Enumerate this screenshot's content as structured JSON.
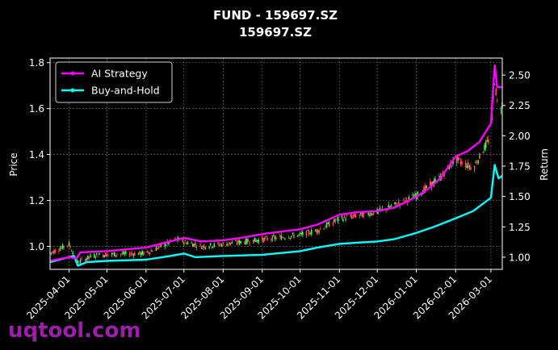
{
  "chart_data": {
    "type": "line",
    "title": "FUND - 159697.SZ",
    "subtitle": "159697.SZ",
    "ylabel_left": "Price",
    "ylabel_right": "Return",
    "x_tick_labels": [
      "2025-04-01",
      "2025-05-01",
      "2025-06-01",
      "2025-07-01",
      "2025-08-01",
      "2025-09-01",
      "2025-10-01",
      "2025-11-01",
      "2025-12-01",
      "2026-01-01",
      "2026-02-01",
      "2026-03-01"
    ],
    "x_range": [
      "2025-03-17",
      "2026-03-10"
    ],
    "y_left_ticks": [
      "1.0",
      "1.2",
      "1.4",
      "1.6",
      "1.8"
    ],
    "y_left_range": [
      0.9,
      1.82
    ],
    "y_right_ticks": [
      "1.00",
      "1.25",
      "1.50",
      "1.75",
      "2.00",
      "2.25",
      "2.50"
    ],
    "y_right_range": [
      0.9,
      2.64
    ],
    "grid": true,
    "legend_position": "top-left",
    "colors": {
      "ai": "#ff00ff",
      "bh": "#00ffff",
      "up": "#55ee55",
      "down": "#ff5555",
      "background": "#000000"
    },
    "series": [
      {
        "name": "AI Strategy",
        "axis": "right",
        "color": "#ff00ff",
        "points": [
          [
            "2025-03-17",
            0.97
          ],
          [
            "2025-04-01",
            1.0
          ],
          [
            "2025-04-07",
            0.99
          ],
          [
            "2025-04-10",
            1.04
          ],
          [
            "2025-05-01",
            1.05
          ],
          [
            "2025-06-01",
            1.08
          ],
          [
            "2025-07-01",
            1.16
          ],
          [
            "2025-07-15",
            1.13
          ],
          [
            "2025-08-01",
            1.14
          ],
          [
            "2025-08-15",
            1.16
          ],
          [
            "2025-09-01",
            1.19
          ],
          [
            "2025-09-15",
            1.21
          ],
          [
            "2025-10-01",
            1.23
          ],
          [
            "2025-10-15",
            1.27
          ],
          [
            "2025-11-01",
            1.35
          ],
          [
            "2025-11-15",
            1.37
          ],
          [
            "2025-12-01",
            1.38
          ],
          [
            "2025-12-15",
            1.41
          ],
          [
            "2026-01-01",
            1.5
          ],
          [
            "2026-01-10",
            1.56
          ],
          [
            "2026-01-20",
            1.65
          ],
          [
            "2026-02-01",
            1.83
          ],
          [
            "2026-02-10",
            1.87
          ],
          [
            "2026-02-20",
            1.95
          ],
          [
            "2026-03-01",
            2.1
          ],
          [
            "2026-03-04",
            2.58
          ],
          [
            "2026-03-06",
            2.4
          ],
          [
            "2026-03-10",
            2.4
          ]
        ]
      },
      {
        "name": "Buy-and-Hold",
        "axis": "right",
        "color": "#00ffff",
        "points": [
          [
            "2025-03-17",
            0.96
          ],
          [
            "2025-04-01",
            1.0
          ],
          [
            "2025-04-05",
            1.01
          ],
          [
            "2025-04-08",
            0.93
          ],
          [
            "2025-04-15",
            0.96
          ],
          [
            "2025-05-01",
            0.97
          ],
          [
            "2025-06-01",
            0.98
          ],
          [
            "2025-06-20",
            1.01
          ],
          [
            "2025-07-01",
            1.03
          ],
          [
            "2025-07-10",
            1.0
          ],
          [
            "2025-08-01",
            1.01
          ],
          [
            "2025-09-01",
            1.02
          ],
          [
            "2025-10-01",
            1.05
          ],
          [
            "2025-10-15",
            1.08
          ],
          [
            "2025-11-01",
            1.11
          ],
          [
            "2025-11-15",
            1.12
          ],
          [
            "2025-12-01",
            1.13
          ],
          [
            "2025-12-15",
            1.15
          ],
          [
            "2026-01-01",
            1.2
          ],
          [
            "2026-01-15",
            1.25
          ],
          [
            "2026-02-01",
            1.32
          ],
          [
            "2026-02-15",
            1.38
          ],
          [
            "2026-03-01",
            1.49
          ],
          [
            "2026-03-04",
            1.76
          ],
          [
            "2026-03-07",
            1.65
          ],
          [
            "2026-03-10",
            1.67
          ]
        ]
      }
    ],
    "price_path": [
      [
        "2025-03-17",
        0.97
      ],
      [
        "2025-04-01",
        1.01
      ],
      [
        "2025-04-08",
        0.93
      ],
      [
        "2025-04-20",
        0.96
      ],
      [
        "2025-05-01",
        0.965
      ],
      [
        "2025-06-01",
        0.97
      ],
      [
        "2025-06-25",
        1.03
      ],
      [
        "2025-07-15",
        1.0
      ],
      [
        "2025-08-01",
        1.01
      ],
      [
        "2025-09-01",
        1.03
      ],
      [
        "2025-10-01",
        1.05
      ],
      [
        "2025-10-15",
        1.07
      ],
      [
        "2025-11-01",
        1.12
      ],
      [
        "2025-12-01",
        1.15
      ],
      [
        "2025-12-15",
        1.18
      ],
      [
        "2026-01-01",
        1.22
      ],
      [
        "2026-01-20",
        1.3
      ],
      [
        "2026-02-01",
        1.38
      ],
      [
        "2026-02-15",
        1.34
      ],
      [
        "2026-03-01",
        1.48
      ],
      [
        "2026-03-04",
        1.72
      ],
      [
        "2026-03-07",
        1.58
      ],
      [
        "2026-03-10",
        1.62
      ]
    ]
  },
  "watermark": "uqtool.com"
}
